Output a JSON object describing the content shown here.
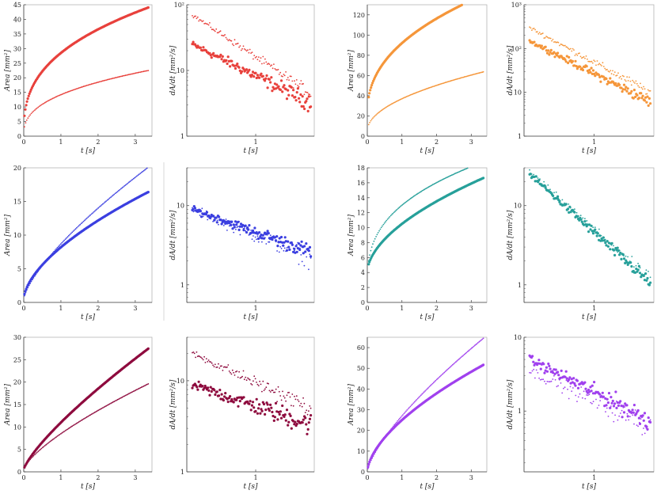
{
  "figure": {
    "colors": {
      "red": "#e8413c",
      "orange": "#f5963a",
      "blue": "#3b3fe0",
      "teal": "#27a09a",
      "maroon": "#8e0b3e",
      "purple": "#a040ee",
      "axis": "#444444"
    }
  },
  "chart_data": [
    {
      "id": "r0c0",
      "type": "scatter",
      "scale": "linear",
      "color": "red",
      "xlabel": "t   [s]",
      "ylabel": "Area   [mm²]",
      "xlim": [
        0,
        3.45
      ],
      "ylim": [
        0,
        45
      ],
      "xticks": [
        0,
        1,
        2,
        3
      ],
      "yticks": [
        0,
        5,
        10,
        15,
        20,
        25,
        30,
        35,
        40,
        45
      ],
      "series": [
        {
          "name": "upper",
          "style": "big",
          "model": "pow",
          "x0": 0.02,
          "x1": 3.35,
          "n": 150,
          "y0": 0,
          "a": 28.5,
          "p": 0.36,
          "noise": 0
        },
        {
          "name": "lower",
          "style": "small",
          "model": "pow",
          "x0": 0.02,
          "x1": 3.35,
          "n": 110,
          "y0": 0,
          "a": 14.2,
          "p": 0.38,
          "noise": 0
        }
      ]
    },
    {
      "id": "r0c1",
      "type": "scatter",
      "scale": "log",
      "color": "red",
      "xlabel": "t   [s]",
      "ylabel": "dA/dt   [mm²/s]",
      "xlim": [
        0,
        1.85
      ],
      "ylim": [
        1,
        100
      ],
      "xticks": [
        1
      ],
      "yticks": [
        1,
        10,
        100
      ],
      "yticklabels": [
        "1",
        "10",
        "10²"
      ],
      "series": [
        {
          "name": "big",
          "style": "big",
          "model": "decay",
          "x0": 0.08,
          "x1": 1.8,
          "n": 130,
          "ya": 25,
          "yb": 3.2,
          "noise": 0.12
        },
        {
          "name": "small",
          "style": "small",
          "model": "decay",
          "x0": 0.08,
          "x1": 1.8,
          "n": 110,
          "ya": 70,
          "yb": 4.5,
          "noise": 0.08
        }
      ]
    },
    {
      "id": "r0c2",
      "type": "scatter",
      "scale": "linear",
      "color": "orange",
      "xlabel": "t   [s]",
      "ylabel": "Area   [mm²]",
      "xlim": [
        0,
        3.45
      ],
      "ylim": [
        0,
        130
      ],
      "xticks": [
        0,
        1,
        2,
        3
      ],
      "yticks": [
        0,
        20,
        40,
        60,
        80,
        100,
        120
      ],
      "series": [
        {
          "name": "upper",
          "style": "big",
          "model": "pow",
          "x0": 0.04,
          "x1": 3.35,
          "n": 150,
          "y0": 20,
          "a": 72,
          "p": 0.42,
          "noise": 0
        },
        {
          "name": "lower",
          "style": "small",
          "model": "pow",
          "x0": 0.04,
          "x1": 3.35,
          "n": 110,
          "y0": 5,
          "a": 32,
          "p": 0.5,
          "noise": 0
        }
      ]
    },
    {
      "id": "r0c3",
      "type": "scatter",
      "scale": "log",
      "color": "orange",
      "xlabel": "t   [s]",
      "ylabel": "dA/dt   [mm²/s]",
      "xlim": [
        0,
        1.85
      ],
      "ylim": [
        1,
        1000
      ],
      "xticks": [
        1
      ],
      "yticks": [
        1,
        10,
        100,
        1000
      ],
      "yticklabels": [
        "1",
        "10",
        "10²",
        "10³"
      ],
      "series": [
        {
          "name": "big",
          "style": "big",
          "model": "decay",
          "x0": 0.08,
          "x1": 1.8,
          "n": 130,
          "ya": 150,
          "yb": 6,
          "noise": 0.12
        },
        {
          "name": "small",
          "style": "small",
          "model": "decay",
          "x0": 0.08,
          "x1": 1.8,
          "n": 110,
          "ya": 300,
          "yb": 10,
          "noise": 0.1
        }
      ]
    },
    {
      "id": "r1c0",
      "type": "scatter",
      "scale": "linear",
      "color": "blue",
      "xlabel": "t   [s]",
      "ylabel": "Area   [mm²]",
      "xlim": [
        0,
        3.45
      ],
      "ylim": [
        0,
        20
      ],
      "xticks": [
        0,
        1,
        2,
        3
      ],
      "yticks": [
        0,
        5,
        10,
        15,
        20
      ],
      "series": [
        {
          "name": "upper",
          "style": "big",
          "model": "pow",
          "x0": 0.02,
          "x1": 3.35,
          "n": 150,
          "y0": 0.5,
          "a": 7.7,
          "p": 0.6,
          "noise": 0
        },
        {
          "name": "lower",
          "style": "small",
          "model": "pow",
          "x0": 0.02,
          "x1": 3.35,
          "n": 110,
          "y0": 0.5,
          "a": 8.2,
          "p": 0.72,
          "noise": 0
        }
      ]
    },
    {
      "id": "r1c1",
      "type": "scatter",
      "scale": "log",
      "color": "blue",
      "xlabel": "t   [s]",
      "ylabel": "dA/dt   [mm²/s]",
      "xlim": [
        0,
        1.85
      ],
      "ylim": [
        0.6,
        30
      ],
      "xticks": [
        1
      ],
      "yticks": [
        1,
        10
      ],
      "yticklabels": [
        "1",
        "10"
      ],
      "series": [
        {
          "name": "big",
          "style": "big",
          "model": "decay",
          "x0": 0.08,
          "x1": 1.8,
          "n": 130,
          "ya": 9,
          "yb": 2.6,
          "noise": 0.09
        },
        {
          "name": "small",
          "style": "small",
          "model": "decay",
          "x0": 0.08,
          "x1": 1.8,
          "n": 110,
          "ya": 9,
          "yb": 2.2,
          "noise": 0.12
        }
      ]
    },
    {
      "id": "r1c2",
      "type": "scatter",
      "scale": "linear",
      "color": "teal",
      "xlabel": "t   [s]",
      "ylabel": "Area   [mm²]",
      "xlim": [
        0,
        3.45
      ],
      "ylim": [
        0,
        18
      ],
      "xticks": [
        0,
        1,
        2,
        3
      ],
      "yticks": [
        0,
        2,
        4,
        6,
        8,
        10,
        12,
        14,
        16,
        18
      ],
      "series": [
        {
          "name": "upper",
          "style": "big",
          "model": "pow",
          "x0": 0.04,
          "x1": 3.35,
          "n": 150,
          "y0": 4,
          "a": 6.5,
          "p": 0.55,
          "noise": 0
        },
        {
          "name": "lower",
          "style": "small",
          "model": "pow",
          "x0": 0.04,
          "x1": 3.35,
          "n": 110,
          "y0": 2,
          "a": 11,
          "p": 0.35,
          "noise": 0
        }
      ]
    },
    {
      "id": "r1c3",
      "type": "scatter",
      "scale": "log",
      "color": "teal",
      "xlabel": "t   [s]",
      "ylabel": "dA/dt   [mm²/s]",
      "xlim": [
        0,
        1.85
      ],
      "ylim": [
        0.6,
        30
      ],
      "xticks": [
        1
      ],
      "yticks": [
        1,
        10
      ],
      "yticklabels": [
        "1",
        "10"
      ],
      "series": [
        {
          "name": "big",
          "style": "big",
          "model": "decay",
          "x0": 0.08,
          "x1": 1.8,
          "n": 130,
          "ya": 25,
          "yb": 1.05,
          "noise": 0.08
        },
        {
          "name": "small",
          "style": "small",
          "model": "decay",
          "x0": 0.08,
          "x1": 1.8,
          "n": 60,
          "ya": 27,
          "yb": 1.2,
          "noise": 0.06
        }
      ]
    },
    {
      "id": "r2c0",
      "type": "scatter",
      "scale": "linear",
      "color": "maroon",
      "xlabel": "t   [s]",
      "ylabel": "Area   [mm²]",
      "xlim": [
        0,
        3.45
      ],
      "ylim": [
        0,
        30
      ],
      "xticks": [
        0,
        1,
        2,
        3
      ],
      "yticks": [
        0,
        5,
        10,
        15,
        20,
        25,
        30
      ],
      "series": [
        {
          "name": "upper",
          "style": "big",
          "model": "pow",
          "x0": 0.02,
          "x1": 3.35,
          "n": 150,
          "y0": 0.5,
          "a": 10.5,
          "p": 0.78,
          "noise": 0
        },
        {
          "name": "lower",
          "style": "small",
          "model": "pow",
          "x0": 0.02,
          "x1": 3.35,
          "n": 110,
          "y0": 0.5,
          "a": 8,
          "p": 0.72,
          "noise": 0
        }
      ]
    },
    {
      "id": "r2c1",
      "type": "scatter",
      "scale": "log",
      "color": "maroon",
      "xlabel": "t   [s]",
      "ylabel": "dA/dt   [mm²/s]",
      "xlim": [
        0,
        1.85
      ],
      "ylim": [
        1,
        30
      ],
      "xticks": [
        1
      ],
      "yticks": [
        1,
        10
      ],
      "yticklabels": [
        "1",
        "10"
      ],
      "series": [
        {
          "name": "big",
          "style": "big",
          "model": "decay",
          "x0": 0.08,
          "x1": 1.8,
          "n": 130,
          "ya": 9,
          "yb": 3.3,
          "noise": 0.12
        },
        {
          "name": "small",
          "style": "small",
          "model": "decay",
          "x0": 0.08,
          "x1": 1.8,
          "n": 110,
          "ya": 20,
          "yb": 5,
          "noise": 0.09
        }
      ]
    },
    {
      "id": "r2c2",
      "type": "scatter",
      "scale": "linear",
      "color": "purple",
      "xlabel": "t   [s]",
      "ylabel": "Area   [mm²]",
      "xlim": [
        0,
        3.45
      ],
      "ylim": [
        0,
        65
      ],
      "xticks": [
        0,
        1,
        2,
        3
      ],
      "yticks": [
        0,
        10,
        20,
        30,
        40,
        50,
        60
      ],
      "series": [
        {
          "name": "upper",
          "style": "big",
          "model": "pow",
          "x0": 0.02,
          "x1": 3.35,
          "n": 150,
          "y0": 0,
          "a": 25,
          "p": 0.6,
          "noise": 0
        },
        {
          "name": "lower",
          "style": "small",
          "model": "pow",
          "x0": 0.02,
          "x1": 3.35,
          "n": 110,
          "y0": 0,
          "a": 27,
          "p": 0.72,
          "noise": 0
        }
      ]
    },
    {
      "id": "r2c3",
      "type": "scatter",
      "scale": "log",
      "color": "purple",
      "xlabel": "t   [s]",
      "ylabel": "dA/dt   [mm²/s]",
      "xlim": [
        0,
        1.85
      ],
      "ylim": [
        0.15,
        10
      ],
      "xticks": [
        1
      ],
      "yticks": [
        1,
        10
      ],
      "yticklabels": [
        "1",
        "10"
      ],
      "series": [
        {
          "name": "big",
          "style": "big",
          "model": "decay",
          "x0": 0.08,
          "x1": 1.8,
          "n": 130,
          "ya": 5,
          "yb": 0.75,
          "noise": 0.14
        },
        {
          "name": "small",
          "style": "small",
          "model": "decay",
          "x0": 0.08,
          "x1": 1.8,
          "n": 90,
          "ya": 3.5,
          "yb": 0.6,
          "noise": 0.16
        }
      ]
    }
  ]
}
